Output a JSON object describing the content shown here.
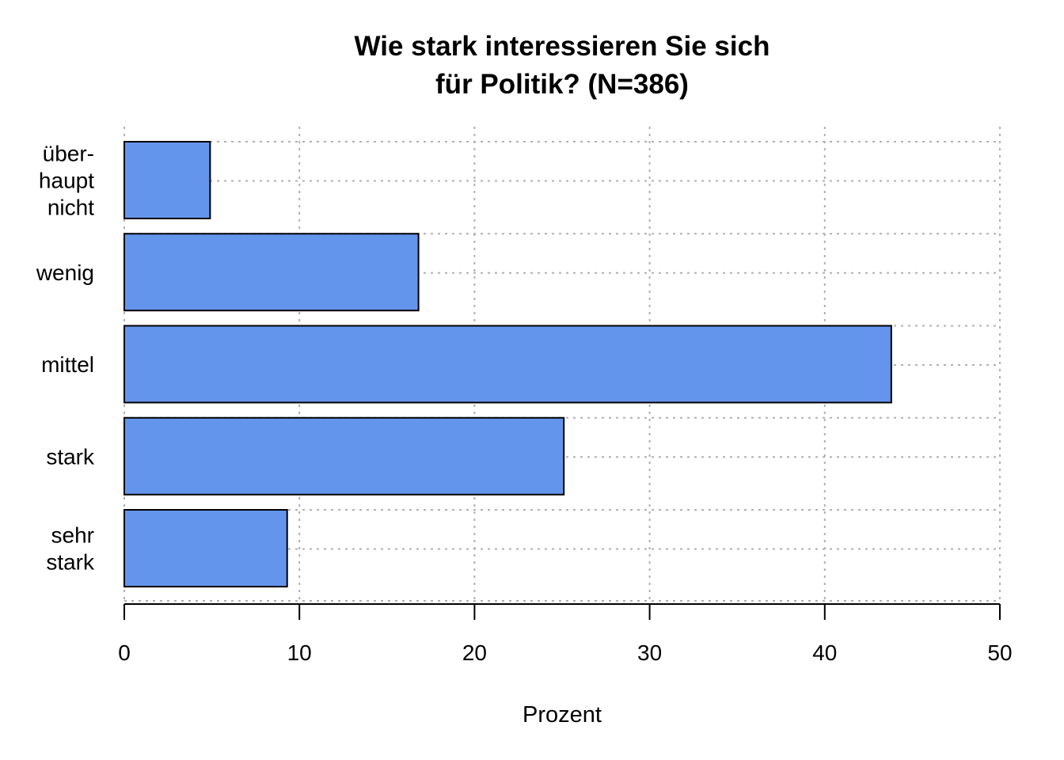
{
  "chart_data": {
    "type": "bar",
    "orientation": "horizontal",
    "title": [
      "Wie stark interessieren Sie sich",
      "für Politik? (N=386)"
    ],
    "xlabel": "Prozent",
    "ylabel": "",
    "xlim": [
      0,
      50
    ],
    "xticks": [
      0,
      10,
      20,
      30,
      40,
      50
    ],
    "categories": [
      [
        "über-",
        "haupt",
        "nicht"
      ],
      [
        "wenig"
      ],
      [
        "mittel"
      ],
      [
        "stark"
      ],
      [
        "sehr",
        "stark"
      ]
    ],
    "values": [
      4.9,
      16.8,
      43.8,
      25.1,
      9.3
    ],
    "grid": true,
    "bar_color": "#6495ED",
    "bar_edge_color": "#000000"
  }
}
